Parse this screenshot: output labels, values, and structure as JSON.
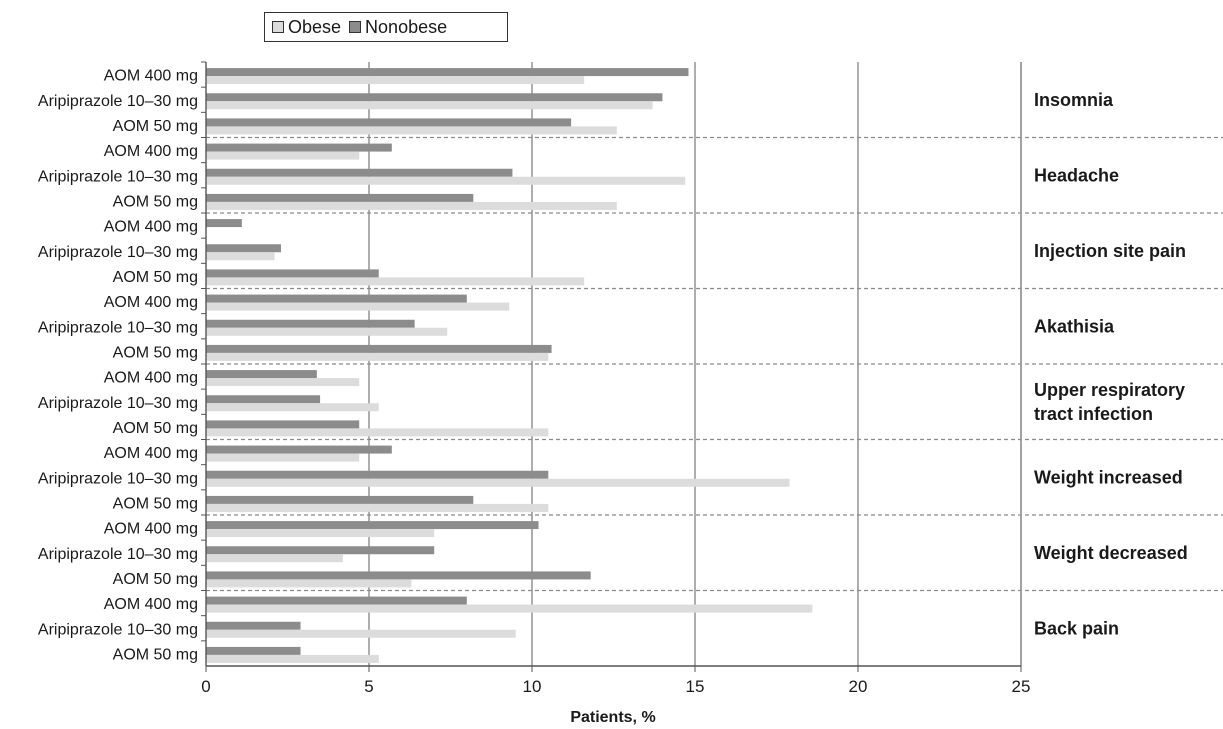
{
  "legend": {
    "items": [
      {
        "name": "Obese",
        "color": "#dcdcdc"
      },
      {
        "name": "Nonobese",
        "color": "#8c8c8c"
      }
    ]
  },
  "chart_data": {
    "type": "bar",
    "orientation": "horizontal",
    "xlabel": "Patients, %",
    "xlim": [
      0,
      25
    ],
    "xticks": [
      0,
      5,
      10,
      15,
      20,
      25
    ],
    "grid": true,
    "legend_position": "top",
    "categories": [
      "AOM 400 mg",
      "Aripiprazole 10–30 mg",
      "AOM 50 mg"
    ],
    "groups": [
      {
        "name": "Insomnia",
        "bars": [
          {
            "category": "AOM 400 mg",
            "Nonobese": 14.8,
            "Obese": 11.6
          },
          {
            "category": "Aripiprazole 10–30 mg",
            "Nonobese": 14.0,
            "Obese": 13.7
          },
          {
            "category": "AOM 50 mg",
            "Nonobese": 11.2,
            "Obese": 12.6
          }
        ]
      },
      {
        "name": "Headache",
        "bars": [
          {
            "category": "AOM 400 mg",
            "Nonobese": 5.7,
            "Obese": 4.7
          },
          {
            "category": "Aripiprazole 10–30 mg",
            "Nonobese": 9.4,
            "Obese": 14.7
          },
          {
            "category": "AOM 50 mg",
            "Nonobese": 8.2,
            "Obese": 12.6
          }
        ]
      },
      {
        "name": "Injection site pain",
        "bars": [
          {
            "category": "AOM 400 mg",
            "Nonobese": 1.1,
            "Obese": 0
          },
          {
            "category": "Aripiprazole 10–30 mg",
            "Nonobese": 2.3,
            "Obese": 2.1
          },
          {
            "category": "AOM 50 mg",
            "Nonobese": 5.3,
            "Obese": 11.6
          }
        ]
      },
      {
        "name": "Akathisia",
        "bars": [
          {
            "category": "AOM 400 mg",
            "Nonobese": 8.0,
            "Obese": 9.3
          },
          {
            "category": "Aripiprazole 10–30 mg",
            "Nonobese": 6.4,
            "Obese": 7.4
          },
          {
            "category": "AOM 50 mg",
            "Nonobese": 10.6,
            "Obese": 10.5
          }
        ]
      },
      {
        "name": "Upper respiratory tract infection",
        "label_lines": [
          "Upper respiratory",
          "tract infection"
        ],
        "bars": [
          {
            "category": "AOM 400 mg",
            "Nonobese": 3.4,
            "Obese": 4.7
          },
          {
            "category": "Aripiprazole 10–30 mg",
            "Nonobese": 3.5,
            "Obese": 5.3
          },
          {
            "category": "AOM 50 mg",
            "Nonobese": 4.7,
            "Obese": 10.5
          }
        ]
      },
      {
        "name": "Weight increased",
        "bars": [
          {
            "category": "AOM 400 mg",
            "Nonobese": 5.7,
            "Obese": 4.7
          },
          {
            "category": "Aripiprazole 10–30 mg",
            "Nonobese": 10.5,
            "Obese": 17.9
          },
          {
            "category": "AOM 50 mg",
            "Nonobese": 8.2,
            "Obese": 10.5
          }
        ]
      },
      {
        "name": "Weight decreased",
        "bars": [
          {
            "category": "AOM 400 mg",
            "Nonobese": 10.2,
            "Obese": 7.0
          },
          {
            "category": "Aripiprazole 10–30 mg",
            "Nonobese": 7.0,
            "Obese": 4.2
          },
          {
            "category": "AOM 50 mg",
            "Nonobese": 11.8,
            "Obese": 6.3
          }
        ]
      },
      {
        "name": "Back pain",
        "bars": [
          {
            "category": "AOM 400 mg",
            "Nonobese": 8.0,
            "Obese": 18.6
          },
          {
            "category": "Aripiprazole 10–30 mg",
            "Nonobese": 2.9,
            "Obese": 9.5
          },
          {
            "category": "AOM 50 mg",
            "Nonobese": 2.9,
            "Obese": 5.3
          }
        ]
      }
    ]
  }
}
